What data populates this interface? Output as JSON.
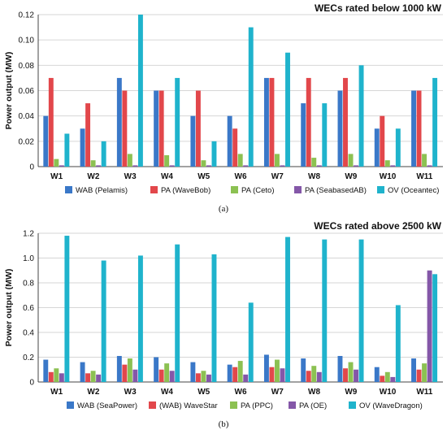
{
  "chart_data": [
    {
      "type": "bar",
      "title": "WECs rated below 1000 kW",
      "ylabel": "Power output (MW)",
      "xlabel": "",
      "ylim": [
        0,
        0.12
      ],
      "yticks": [
        "0",
        "0.02",
        "0.04",
        "0.06",
        "0.08",
        "0.10",
        "0.12"
      ],
      "grid": true,
      "legend_position": "bottom",
      "caption": "(a)",
      "categories": [
        "W1",
        "W2",
        "W3",
        "W4",
        "W5",
        "W6",
        "W7",
        "W8",
        "W9",
        "W10",
        "W11"
      ],
      "series": [
        {
          "name": "WAB (Pelamis)",
          "color": "#3a78c8",
          "values": [
            0.04,
            0.03,
            0.07,
            0.06,
            0.04,
            0.04,
            0.07,
            0.05,
            0.06,
            0.03,
            0.06
          ]
        },
        {
          "name": "PA (WaveBob)",
          "color": "#e2474b",
          "values": [
            0.07,
            0.05,
            0.06,
            0.06,
            0.06,
            0.03,
            0.07,
            0.07,
            0.07,
            0.04,
            0.06
          ]
        },
        {
          "name": "PA (Ceto)",
          "color": "#8cc152",
          "values": [
            0.006,
            0.005,
            0.01,
            0.009,
            0.005,
            0.01,
            0.01,
            0.007,
            0.01,
            0.005,
            0.01
          ]
        },
        {
          "name": "PA (SeabasedAB)",
          "color": "#8457a8",
          "values": [
            0.001,
            0.001,
            0.001,
            0.001,
            0.001,
            0.001,
            0.001,
            0.001,
            0.001,
            0.001,
            0.001
          ]
        },
        {
          "name": "OV (Oceantec)",
          "color": "#1fb3cc",
          "values": [
            0.026,
            0.02,
            0.12,
            0.07,
            0.02,
            0.11,
            0.09,
            0.05,
            0.08,
            0.03,
            0.07
          ]
        }
      ]
    },
    {
      "type": "bar",
      "title": "WECs rated above 2500 kW",
      "ylabel": "Power output (MW)",
      "xlabel": "",
      "ylim": [
        0,
        1.2
      ],
      "yticks": [
        "0",
        "0.2",
        "0.4",
        "0.6",
        "0.8",
        "1.0",
        "1.2"
      ],
      "grid": true,
      "legend_position": "bottom",
      "caption": "(b)",
      "categories": [
        "W1",
        "W2",
        "W3",
        "W4",
        "W5",
        "W6",
        "W7",
        "W8",
        "W9",
        "W10",
        "W11"
      ],
      "series": [
        {
          "name": "WAB (SeaPower)",
          "color": "#3a78c8",
          "values": [
            0.18,
            0.16,
            0.21,
            0.2,
            0.16,
            0.14,
            0.22,
            0.19,
            0.21,
            0.12,
            0.19
          ]
        },
        {
          "name": "(WAB) WaveStar",
          "color": "#e2474b",
          "values": [
            0.08,
            0.07,
            0.14,
            0.1,
            0.07,
            0.12,
            0.12,
            0.09,
            0.11,
            0.05,
            0.1
          ]
        },
        {
          "name": "PA (PPC)",
          "color": "#8cc152",
          "values": [
            0.11,
            0.09,
            0.19,
            0.15,
            0.09,
            0.17,
            0.18,
            0.13,
            0.16,
            0.08,
            0.15
          ]
        },
        {
          "name": "PA (OE)",
          "color": "#8457a8",
          "values": [
            0.07,
            0.06,
            0.1,
            0.09,
            0.06,
            0.06,
            0.11,
            0.08,
            0.1,
            0.04,
            0.9
          ]
        },
        {
          "name": "OV (WaveDragon)",
          "color": "#1fb3cc",
          "values": [
            1.18,
            0.98,
            1.02,
            1.11,
            1.03,
            0.64,
            1.17,
            1.15,
            1.15,
            0.62,
            0.87
          ]
        }
      ]
    }
  ]
}
